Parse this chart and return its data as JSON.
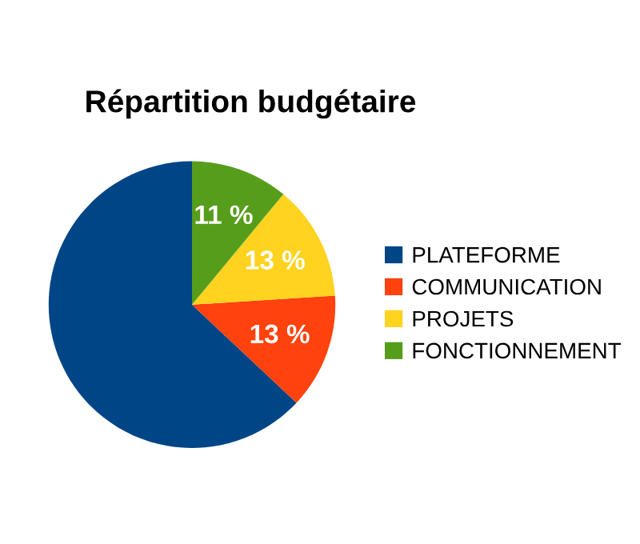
{
  "chart_data": {
    "type": "pie",
    "title": "Répartition budgétaire",
    "categories": [
      "PLATEFORME",
      "COMMUNICATION",
      "PROJETS",
      "FONCTIONNEMENT"
    ],
    "values": [
      63,
      13,
      13,
      11
    ],
    "colors": [
      "#004586",
      "#ff420e",
      "#ffd320",
      "#579d1c"
    ],
    "value_labels": [
      null,
      "13 %",
      "13 %",
      "11 %"
    ],
    "legend": "right"
  }
}
